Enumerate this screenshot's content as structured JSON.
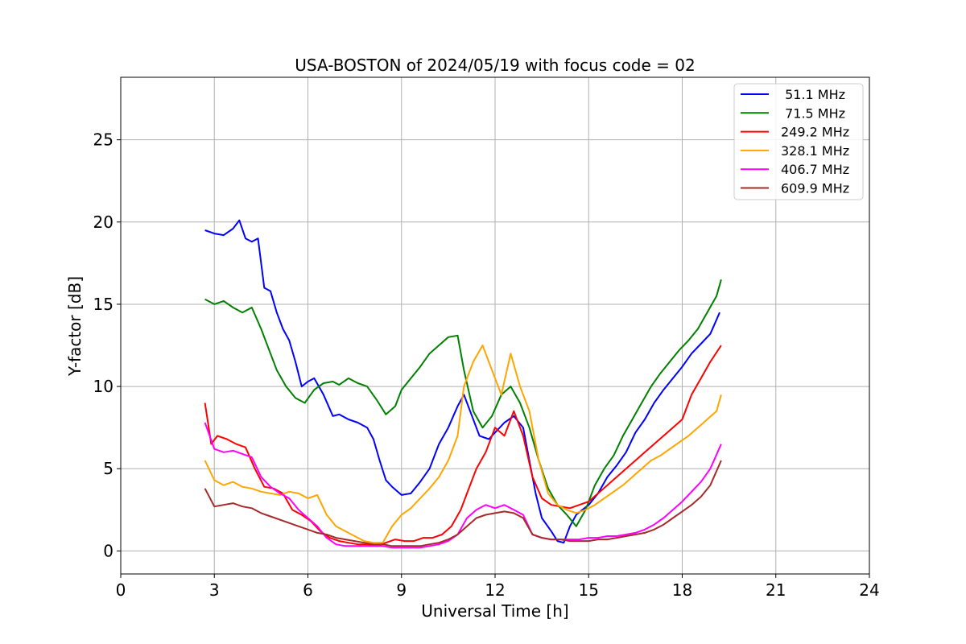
{
  "chart_data": {
    "type": "line",
    "title": "USA-BOSTON of 2024/05/19 with focus code = 02",
    "xlabel": "Universal Time [h]",
    "ylabel": "Y-factor [dB]",
    "xlim": [
      0,
      24
    ],
    "ylim": [
      -1.4,
      28.8
    ],
    "xticks": [
      0,
      3,
      6,
      9,
      12,
      15,
      18,
      21,
      24
    ],
    "yticks": [
      0,
      5,
      10,
      15,
      20,
      25
    ],
    "grid": true,
    "legend_position": "top-right",
    "series": [
      {
        "name": " 51.1 MHz",
        "color": "#0000ff",
        "x": [
          2.7,
          3.0,
          3.3,
          3.6,
          3.8,
          4.0,
          4.2,
          4.4,
          4.6,
          4.8,
          5.0,
          5.2,
          5.4,
          5.6,
          5.8,
          6.0,
          6.2,
          6.5,
          6.8,
          7.0,
          7.3,
          7.6,
          7.9,
          8.1,
          8.3,
          8.5,
          8.7,
          9.0,
          9.3,
          9.6,
          9.9,
          10.2,
          10.5,
          10.8,
          11.0,
          11.2,
          11.5,
          11.8,
          12.0,
          12.3,
          12.6,
          12.9,
          13.1,
          13.3,
          13.5,
          13.8,
          14.0,
          14.2,
          14.4,
          14.6,
          14.8,
          15.0,
          15.3,
          15.6,
          15.9,
          16.2,
          16.5,
          16.8,
          17.1,
          17.4,
          17.7,
          18.0,
          18.3,
          18.6,
          18.9,
          19.2
        ],
        "y": [
          19.5,
          19.3,
          19.2,
          19.6,
          20.1,
          19.0,
          18.8,
          19.0,
          16.0,
          15.8,
          14.5,
          13.5,
          12.8,
          11.5,
          10.0,
          10.3,
          10.5,
          9.5,
          8.2,
          8.3,
          8.0,
          7.8,
          7.5,
          6.8,
          5.5,
          4.3,
          3.9,
          3.4,
          3.5,
          4.2,
          5.0,
          6.5,
          7.5,
          8.8,
          9.5,
          8.5,
          7.0,
          6.8,
          7.2,
          7.8,
          8.2,
          7.5,
          5.5,
          3.5,
          2.0,
          1.2,
          0.6,
          0.5,
          1.5,
          2.2,
          2.5,
          2.8,
          3.5,
          4.5,
          5.2,
          6.0,
          7.2,
          8.0,
          9.0,
          9.8,
          10.5,
          11.2,
          12.0,
          12.6,
          13.2,
          14.5
        ]
      },
      {
        "name": " 71.5 MHz",
        "color": "#008000",
        "x": [
          2.7,
          3.0,
          3.3,
          3.6,
          3.9,
          4.2,
          4.5,
          4.8,
          5.0,
          5.3,
          5.6,
          5.9,
          6.2,
          6.5,
          6.8,
          7.0,
          7.3,
          7.6,
          7.9,
          8.2,
          8.5,
          8.8,
          9.0,
          9.3,
          9.6,
          9.9,
          10.2,
          10.5,
          10.8,
          11.0,
          11.3,
          11.6,
          11.9,
          12.2,
          12.5,
          12.8,
          13.1,
          13.4,
          13.7,
          14.0,
          14.3,
          14.6,
          14.9,
          15.2,
          15.5,
          15.8,
          16.1,
          16.4,
          16.7,
          17.0,
          17.3,
          17.6,
          17.9,
          18.2,
          18.5,
          18.8,
          19.1,
          19.25
        ],
        "y": [
          15.3,
          15.0,
          15.2,
          14.8,
          14.5,
          14.8,
          13.5,
          12.0,
          11.0,
          10.0,
          9.3,
          9.0,
          9.8,
          10.2,
          10.3,
          10.1,
          10.5,
          10.2,
          10.0,
          9.2,
          8.3,
          8.8,
          9.8,
          10.5,
          11.2,
          12.0,
          12.5,
          13.0,
          13.1,
          11.0,
          8.5,
          7.5,
          8.2,
          9.5,
          10.0,
          9.0,
          7.5,
          5.5,
          3.8,
          2.8,
          2.2,
          1.5,
          2.5,
          4.0,
          5.0,
          5.8,
          7.0,
          8.0,
          9.0,
          10.0,
          10.8,
          11.5,
          12.2,
          12.8,
          13.5,
          14.5,
          15.5,
          16.5
        ]
      },
      {
        "name": "249.2 MHz",
        "color": "#ff0000",
        "x": [
          2.7,
          2.9,
          3.1,
          3.4,
          3.7,
          4.0,
          4.3,
          4.6,
          4.9,
          5.2,
          5.5,
          5.8,
          6.1,
          6.4,
          6.7,
          7.0,
          7.3,
          7.6,
          7.9,
          8.2,
          8.5,
          8.8,
          9.1,
          9.4,
          9.7,
          10.0,
          10.3,
          10.6,
          10.9,
          11.1,
          11.4,
          11.7,
          12.0,
          12.3,
          12.6,
          12.9,
          13.2,
          13.5,
          13.8,
          14.1,
          14.4,
          14.7,
          15.0,
          15.3,
          15.6,
          15.9,
          16.2,
          16.5,
          16.8,
          17.1,
          17.4,
          17.7,
          18.0,
          18.3,
          18.6,
          18.9,
          19.25
        ],
        "y": [
          9.0,
          6.5,
          7.0,
          6.8,
          6.5,
          6.3,
          5.0,
          3.9,
          3.8,
          3.5,
          2.5,
          2.2,
          1.8,
          1.2,
          0.8,
          0.6,
          0.5,
          0.4,
          0.4,
          0.3,
          0.5,
          0.7,
          0.6,
          0.6,
          0.8,
          0.8,
          1.0,
          1.5,
          2.5,
          3.5,
          5.0,
          6.0,
          7.5,
          7.0,
          8.5,
          7.0,
          4.5,
          3.2,
          2.8,
          2.7,
          2.6,
          2.8,
          3.0,
          3.5,
          4.0,
          4.5,
          5.0,
          5.5,
          6.0,
          6.5,
          7.0,
          7.5,
          8.0,
          9.5,
          10.5,
          11.5,
          12.5
        ]
      },
      {
        "name": "328.1 MHz",
        "color": "#ffa500",
        "x": [
          2.7,
          3.0,
          3.3,
          3.6,
          3.9,
          4.2,
          4.5,
          4.8,
          5.1,
          5.4,
          5.7,
          6.0,
          6.3,
          6.6,
          6.9,
          7.2,
          7.5,
          7.8,
          8.1,
          8.4,
          8.7,
          9.0,
          9.3,
          9.6,
          9.9,
          10.2,
          10.5,
          10.8,
          11.0,
          11.3,
          11.6,
          11.9,
          12.2,
          12.5,
          12.8,
          13.1,
          13.4,
          13.7,
          14.0,
          14.3,
          14.6,
          14.9,
          15.2,
          15.5,
          15.8,
          16.1,
          16.4,
          16.7,
          17.0,
          17.3,
          17.6,
          17.9,
          18.2,
          18.5,
          18.8,
          19.1,
          19.25
        ],
        "y": [
          5.5,
          4.3,
          4.0,
          4.2,
          3.9,
          3.8,
          3.6,
          3.5,
          3.4,
          3.6,
          3.5,
          3.2,
          3.4,
          2.2,
          1.5,
          1.2,
          0.9,
          0.6,
          0.5,
          0.5,
          1.5,
          2.2,
          2.6,
          3.2,
          3.8,
          4.5,
          5.5,
          7.0,
          10.0,
          11.5,
          12.5,
          11.0,
          9.5,
          12.0,
          10.0,
          8.5,
          5.5,
          3.5,
          2.8,
          2.5,
          2.3,
          2.5,
          2.8,
          3.2,
          3.6,
          4.0,
          4.5,
          5.0,
          5.5,
          5.8,
          6.2,
          6.6,
          7.0,
          7.5,
          8.0,
          8.5,
          9.5
        ]
      },
      {
        "name": "406.7 MHz",
        "color": "#ff00ff",
        "x": [
          2.7,
          3.0,
          3.3,
          3.6,
          3.9,
          4.2,
          4.5,
          4.8,
          5.1,
          5.4,
          5.7,
          6.0,
          6.3,
          6.6,
          6.9,
          7.2,
          7.5,
          7.8,
          8.1,
          8.4,
          8.7,
          9.0,
          9.3,
          9.6,
          9.9,
          10.2,
          10.5,
          10.8,
          11.1,
          11.4,
          11.7,
          12.0,
          12.3,
          12.6,
          12.9,
          13.2,
          13.5,
          13.8,
          14.1,
          14.4,
          14.7,
          15.0,
          15.3,
          15.6,
          15.9,
          16.2,
          16.5,
          16.8,
          17.1,
          17.4,
          17.7,
          18.0,
          18.3,
          18.6,
          18.9,
          19.25
        ],
        "y": [
          7.8,
          6.2,
          6.0,
          6.1,
          5.9,
          5.7,
          4.5,
          3.9,
          3.5,
          3.2,
          2.5,
          2.0,
          1.5,
          0.8,
          0.4,
          0.3,
          0.3,
          0.3,
          0.3,
          0.3,
          0.2,
          0.2,
          0.2,
          0.2,
          0.3,
          0.4,
          0.6,
          1.0,
          2.0,
          2.5,
          2.8,
          2.6,
          2.8,
          2.5,
          2.2,
          1.0,
          0.8,
          0.7,
          0.7,
          0.7,
          0.7,
          0.8,
          0.8,
          0.9,
          0.9,
          1.0,
          1.1,
          1.3,
          1.6,
          2.0,
          2.5,
          3.0,
          3.6,
          4.2,
          5.0,
          6.5
        ]
      },
      {
        "name": "609.9 MHz",
        "color": "#a52a2a",
        "x": [
          2.7,
          3.0,
          3.3,
          3.6,
          3.9,
          4.2,
          4.5,
          4.8,
          5.1,
          5.4,
          5.7,
          6.0,
          6.3,
          6.6,
          6.9,
          7.2,
          7.5,
          7.8,
          8.1,
          8.4,
          8.7,
          9.0,
          9.3,
          9.6,
          9.9,
          10.2,
          10.5,
          10.8,
          11.1,
          11.4,
          11.7,
          12.0,
          12.3,
          12.6,
          12.9,
          13.2,
          13.5,
          13.8,
          14.1,
          14.4,
          14.7,
          15.0,
          15.3,
          15.6,
          15.9,
          16.2,
          16.5,
          16.8,
          17.1,
          17.4,
          17.7,
          18.0,
          18.3,
          18.6,
          18.9,
          19.25
        ],
        "y": [
          3.8,
          2.7,
          2.8,
          2.9,
          2.7,
          2.6,
          2.3,
          2.1,
          1.9,
          1.7,
          1.5,
          1.3,
          1.1,
          1.0,
          0.8,
          0.7,
          0.6,
          0.5,
          0.4,
          0.4,
          0.3,
          0.3,
          0.3,
          0.3,
          0.4,
          0.5,
          0.7,
          1.0,
          1.5,
          2.0,
          2.2,
          2.3,
          2.4,
          2.3,
          2.0,
          1.0,
          0.8,
          0.7,
          0.7,
          0.6,
          0.6,
          0.6,
          0.7,
          0.7,
          0.8,
          0.9,
          1.0,
          1.1,
          1.3,
          1.6,
          2.0,
          2.4,
          2.8,
          3.3,
          4.0,
          5.5
        ]
      }
    ]
  }
}
